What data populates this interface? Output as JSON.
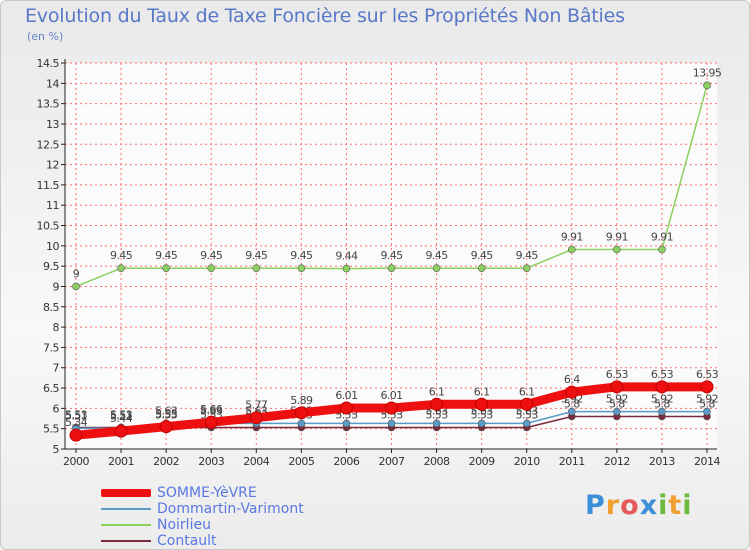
{
  "title": "Evolution du Taux de Taxe Foncière sur les Propriétés Non Bâties",
  "subtitle": "(en %)",
  "logo": {
    "text": "Proxiti"
  },
  "colors": {
    "title": "#5a78c8",
    "grid": "#ff6e6e",
    "axis": "#222222"
  },
  "chart_data": {
    "type": "line",
    "title": "Evolution du Taux de Taxe Foncière sur les Propriétés Non Bâties",
    "ylabel": "(en %)",
    "xlabel": "",
    "ylim": [
      5,
      14.5
    ],
    "yticks": [
      5,
      5.5,
      6,
      6.5,
      7,
      7.5,
      8,
      8.5,
      9,
      9.5,
      10,
      10.5,
      11,
      11.5,
      12,
      12.5,
      13,
      13.5,
      14,
      14.5
    ],
    "x": [
      "2000",
      "2001",
      "2002",
      "2003",
      "2004",
      "2005",
      "2006",
      "2007",
      "2008",
      "2009",
      "2010",
      "2011",
      "2012",
      "2013",
      "2014"
    ],
    "series": [
      {
        "name": "Contault",
        "color": "#7a2a3a",
        "values": [
          5.53,
          5.53,
          5.53,
          5.53,
          5.53,
          5.53,
          5.53,
          5.53,
          5.53,
          5.53,
          5.53,
          5.8,
          5.8,
          5.8,
          5.8
        ],
        "labels": [
          "5.53",
          "5.53",
          "5.53",
          "5.53",
          "5.53",
          "5.53",
          "5.53",
          "5.53",
          "5.53",
          "5.53",
          "5.53",
          "5.8",
          "5.8",
          "5.8",
          "5.8"
        ]
      },
      {
        "name": "Dommartin-Varimont",
        "color": "#5b9bc8",
        "values": [
          5.51,
          5.51,
          5.63,
          5.63,
          5.63,
          5.63,
          5.63,
          5.63,
          5.63,
          5.63,
          5.63,
          5.92,
          5.92,
          5.92,
          5.92
        ],
        "labels": [
          "5.51",
          "5.51",
          "5.63",
          "5.63",
          "5.63",
          "5.63",
          "5.63",
          "5.63",
          "5.63",
          "5.63",
          "5.63",
          "5.92",
          "5.92",
          "5.92",
          "5.92"
        ]
      },
      {
        "name": "Noirlieu",
        "color": "#8cd060",
        "values": [
          9,
          9.45,
          9.45,
          9.45,
          9.45,
          9.45,
          9.44,
          9.45,
          9.45,
          9.45,
          9.45,
          9.91,
          9.91,
          9.91,
          13.95
        ],
        "labels": [
          "9",
          "9.45",
          "9.45",
          "9.45",
          "9.45",
          "9.45",
          "9.44",
          "9.45",
          "9.45",
          "9.45",
          "9.45",
          "9.91",
          "9.91",
          "9.91",
          "13.95"
        ]
      },
      {
        "name": "SOMME-YèVRE",
        "color": "#ee1010",
        "values": [
          5.34,
          5.44,
          5.55,
          5.66,
          5.77,
          5.89,
          6.01,
          6.01,
          6.1,
          6.1,
          6.1,
          6.4,
          6.53,
          6.53,
          6.53
        ],
        "labels": [
          "5.34",
          "5.44",
          "5.55",
          "5.66",
          "5.77",
          "5.89",
          "6.01",
          "6.01",
          "6.1",
          "6.1",
          "6.1",
          "6.4",
          "6.53",
          "6.53",
          "6.53"
        ]
      }
    ],
    "legend": [
      "SOMME-YèVRE",
      "Dommartin-Varimont",
      "Noirlieu",
      "Contault"
    ],
    "legend_position": "bottom-left",
    "grid": true
  }
}
